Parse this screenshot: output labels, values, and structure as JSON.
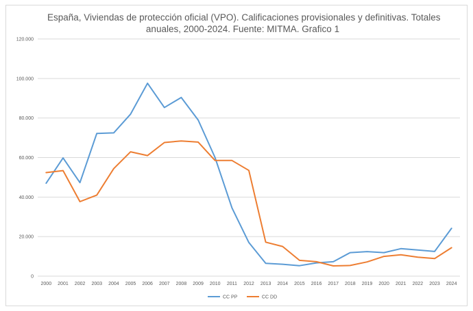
{
  "chart_data": {
    "type": "line",
    "title_line1": "España, Viviendas de protección oficial (VPO). Calificaciones provisionales y definitivas. Totales",
    "title_line2": "anuales, 2000-2024. Fuente: MITMA.  Grafico 1",
    "categories": [
      "2000",
      "2001",
      "2002",
      "2003",
      "2004",
      "2005",
      "2006",
      "2007",
      "2008",
      "2009",
      "2010",
      "2011",
      "2012",
      "2013",
      "2014",
      "2015",
      "2016",
      "2017",
      "2018",
      "2019",
      "2020",
      "2021",
      "2022",
      "2023",
      "2024"
    ],
    "ylim": [
      0,
      120000
    ],
    "yticks": [
      0,
      20000,
      40000,
      60000,
      80000,
      100000,
      120000
    ],
    "ytick_labels": [
      "0",
      "20.000",
      "40.000",
      "60.000",
      "80.000",
      "100.000",
      "120.000"
    ],
    "grid": true,
    "legend_position": "bottom",
    "series": [
      {
        "name": "CC  PP",
        "color": "#5b9bd5",
        "values": [
          47000,
          59800,
          47300,
          72200,
          72500,
          82000,
          97600,
          85300,
          90400,
          79000,
          60000,
          34500,
          17000,
          6500,
          6000,
          5300,
          6700,
          7300,
          11900,
          12400,
          11900,
          13900,
          13200,
          12500,
          24200
        ]
      },
      {
        "name": "CC  DD",
        "color": "#ed7d31",
        "values": [
          52400,
          53400,
          37700,
          41000,
          54400,
          62900,
          61000,
          67600,
          68400,
          67800,
          58500,
          58500,
          53500,
          17200,
          15000,
          8000,
          7300,
          5200,
          5400,
          7200,
          10000,
          10800,
          9600,
          8900,
          14400
        ]
      }
    ]
  }
}
